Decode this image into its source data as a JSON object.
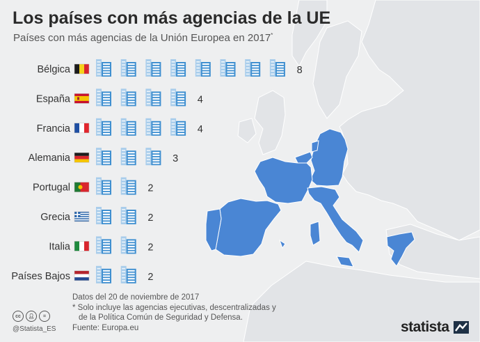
{
  "title": "Los países con más agencias de la UE",
  "subtitle": "Países con más agencias de la Unión Europea en 2017",
  "subtitle_mark": "*",
  "footer": {
    "date": "Datos del 20 de noviembre de 2017",
    "note_line1": "* Solo incluye las agencias ejecutivas, descentralizadas y",
    "note_line2": "de la Política Común de Seguridad y Defensa.",
    "source": "Fuente: Europa.eu"
  },
  "handle": "@Statista_ES",
  "license_icons": [
    "cc-icon",
    "by-icon",
    "nd-icon"
  ],
  "brand": "statista",
  "colors": {
    "map_highlight": "#4a86d4",
    "map_base": "#e1e3e6",
    "icon_blue": "#3f8fd0",
    "icon_light": "#a9cdeb"
  },
  "chart_data": {
    "type": "bar",
    "title": "Los países con más agencias de la UE",
    "subtitle": "Países con más agencias de la Unión Europea en 2017*",
    "categories": [
      "Bélgica",
      "España",
      "Francia",
      "Alemania",
      "Portugal",
      "Grecia",
      "Italia",
      "Países Bajos"
    ],
    "values": [
      8,
      4,
      4,
      3,
      2,
      2,
      2,
      2
    ],
    "flags": [
      "belgium-flag-icon",
      "spain-flag-icon",
      "france-flag-icon",
      "germany-flag-icon",
      "portugal-flag-icon",
      "greece-flag-icon",
      "italy-flag-icon",
      "netherlands-flag-icon"
    ],
    "unit_icon": "building-icon"
  }
}
